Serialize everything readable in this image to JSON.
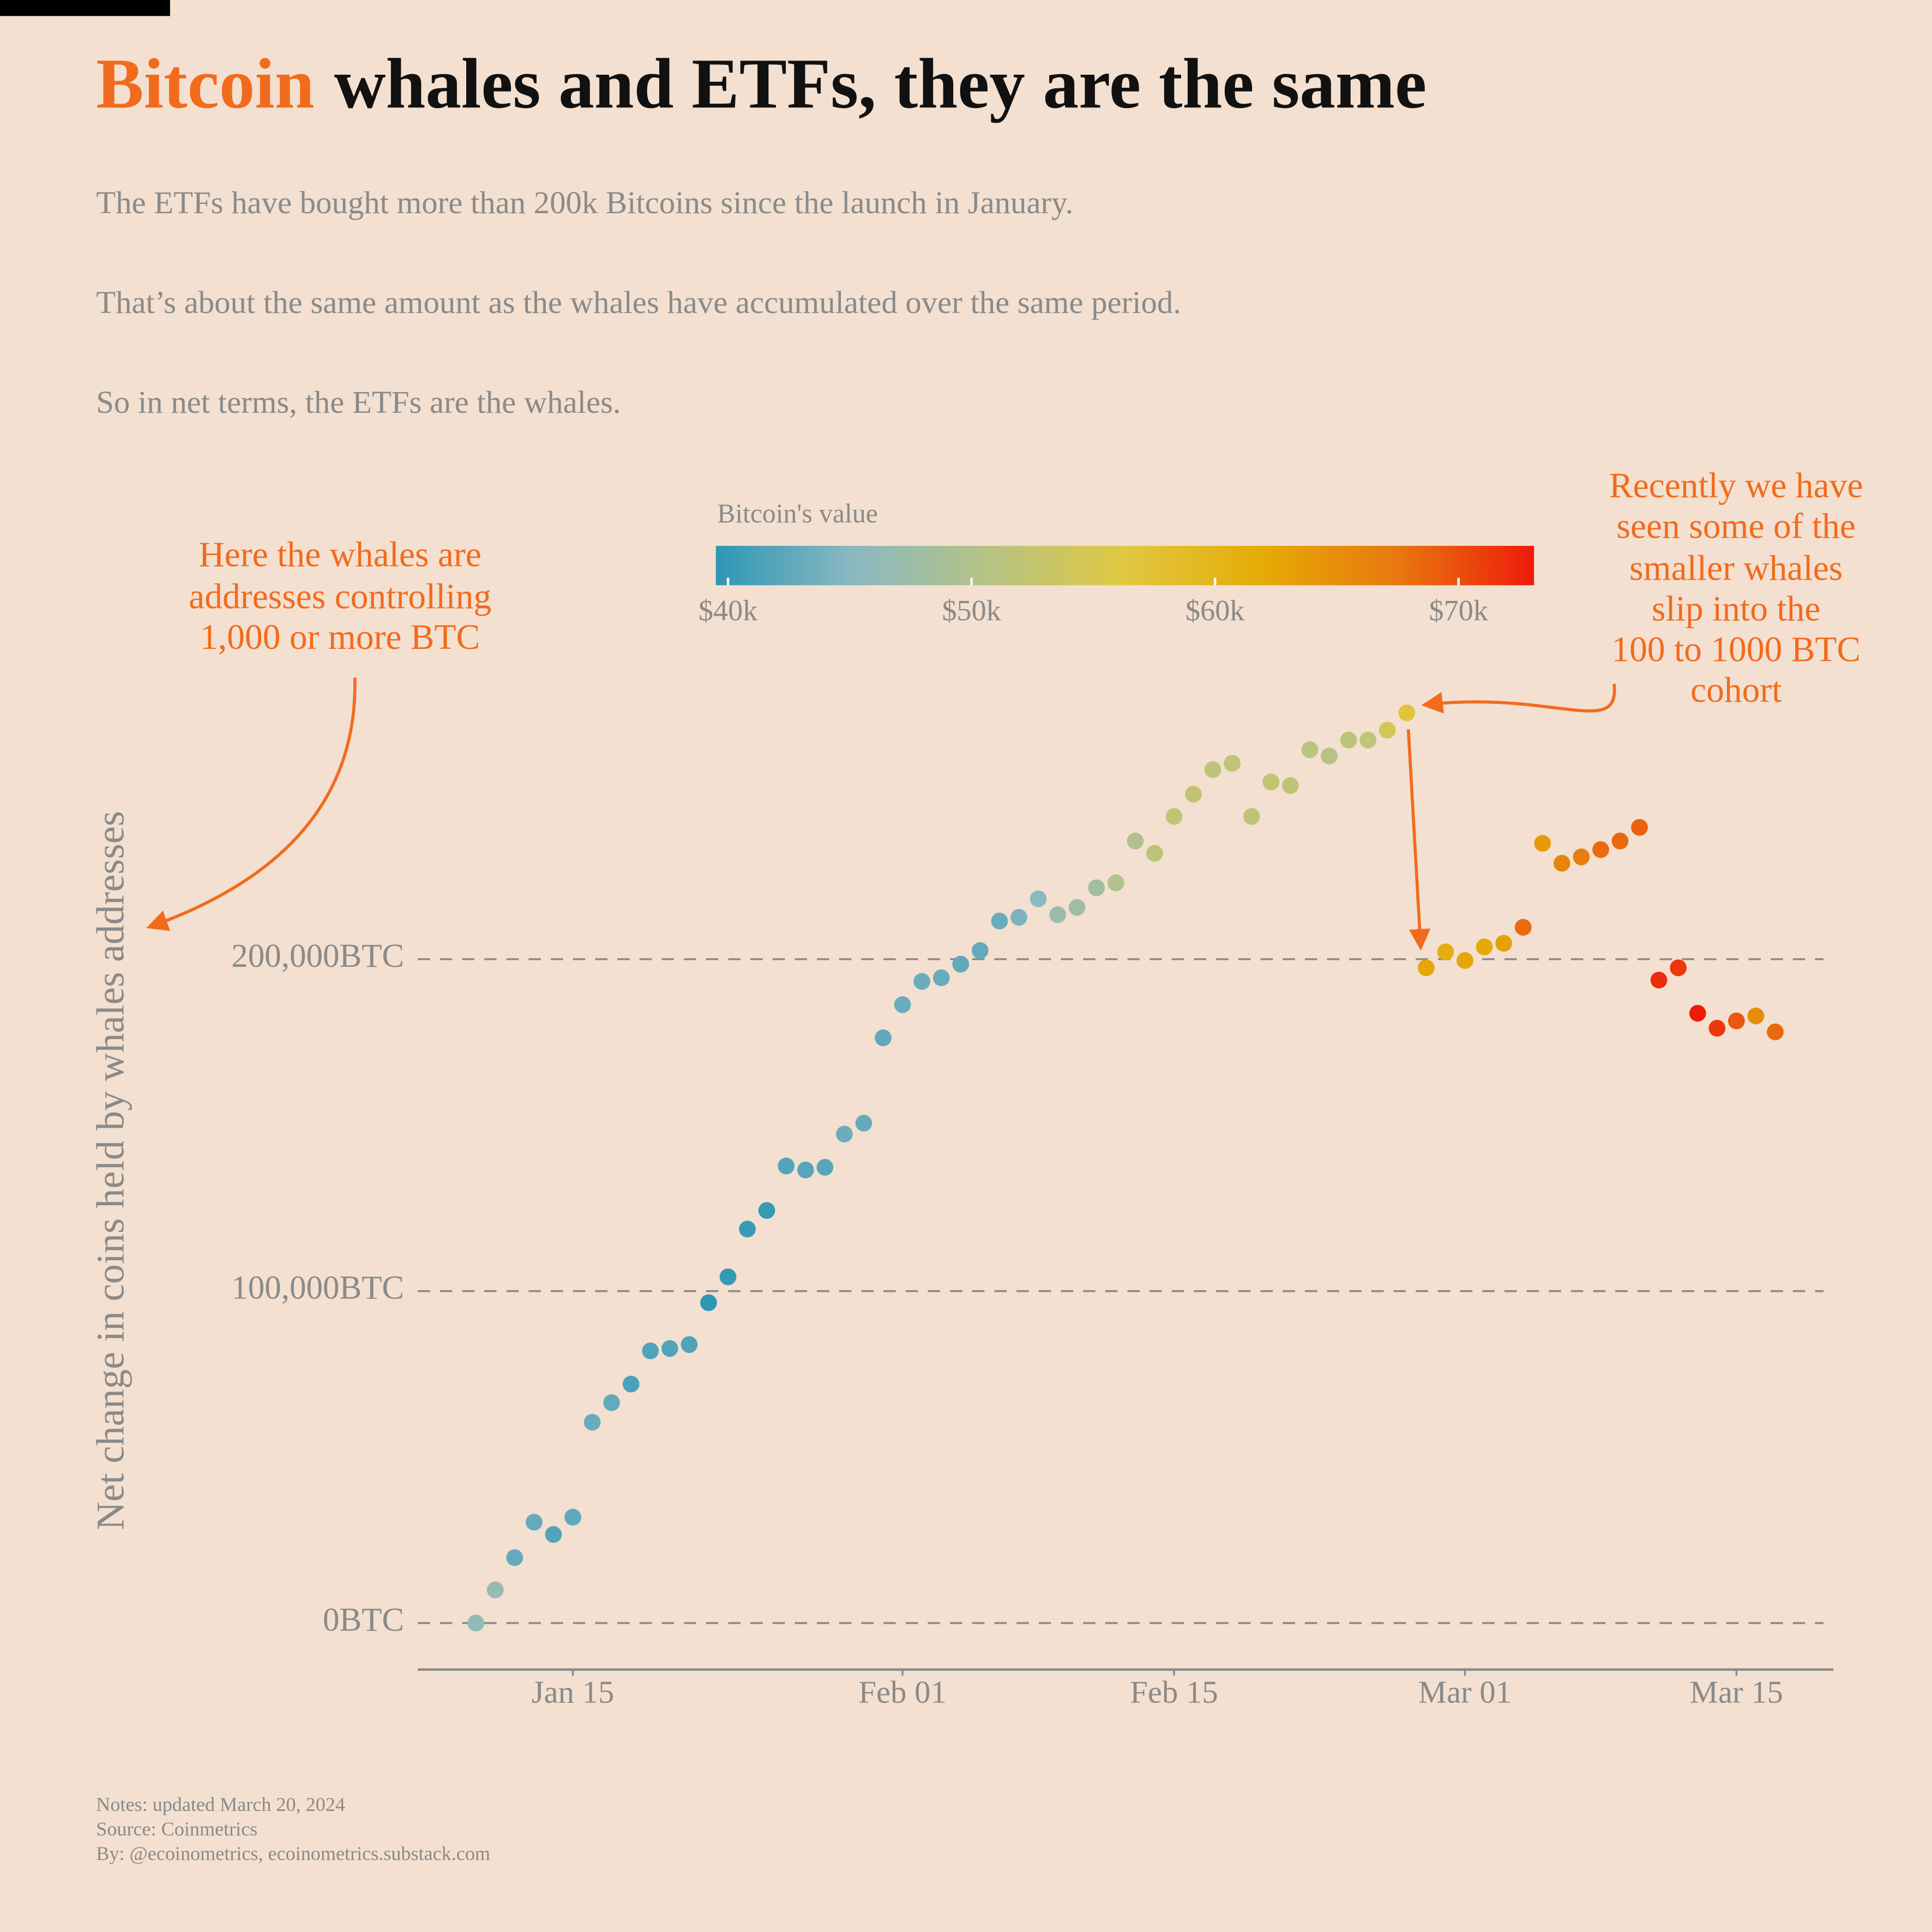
{
  "chart_data": {
    "type": "scatter",
    "title_parts": [
      "Bitcoin",
      "whales and ETFs, they are the same"
    ],
    "title_colors": [
      "#f26b1d",
      "#111111"
    ],
    "subtitle": [
      "The ETFs have bought more than 200k Bitcoins since the launch in January.",
      "That’s about the same amount as the whales have accumulated over the same period.",
      "So in net terms, the ETFs are the whales."
    ],
    "y_label": "Net change in coins held by whales addresses",
    "annotations": [
      [
        "Here the whales are",
        "addresses controlling",
        "1,000 or more BTC"
      ],
      [
        "Recently we have",
        "seen some of the",
        "smaller whales",
        "slip into the",
        "100 to 1000 BTC",
        "cohort"
      ]
    ],
    "notes": [
      "Notes: updated March 20, 2024",
      "Source: Coinmetrics",
      "By: @ecoinometrics, ecoinometrics.substack.com"
    ],
    "x": [
      "01-10",
      "01-11",
      "01-12",
      "01-13",
      "01-14",
      "01-15",
      "01-16",
      "01-17",
      "01-18",
      "01-19",
      "01-20",
      "01-21",
      "01-22",
      "01-23",
      "01-24",
      "01-25",
      "01-26",
      "01-27",
      "01-28",
      "01-29",
      "01-30",
      "01-31",
      "02-01",
      "02-02",
      "02-03",
      "02-04",
      "02-05",
      "02-06",
      "02-07",
      "02-08",
      "02-09",
      "02-10",
      "02-11",
      "02-12",
      "02-13",
      "02-14",
      "02-15",
      "02-16",
      "02-17",
      "02-18",
      "02-19",
      "02-20",
      "02-21",
      "02-22",
      "02-23",
      "02-24",
      "02-25",
      "02-26",
      "02-27",
      "02-28",
      "02-29",
      "03-01",
      "03-02",
      "03-03",
      "03-04",
      "03-05",
      "03-06",
      "03-07",
      "03-08",
      "03-09",
      "03-10",
      "03-11",
      "03-12",
      "03-13",
      "03-14",
      "03-15",
      "03-16",
      "03-17"
    ],
    "values": [
      0,
      10000,
      19700,
      30400,
      26700,
      31900,
      60500,
      66400,
      72000,
      82000,
      82700,
      83900,
      96500,
      104300,
      118700,
      124300,
      137700,
      136500,
      137300,
      147300,
      150600,
      176300,
      186300,
      193300,
      194400,
      198500,
      202600,
      211500,
      212600,
      218200,
      213400,
      215600,
      221500,
      223000,
      235600,
      231900,
      243000,
      249700,
      257100,
      259000,
      243000,
      253400,
      252300,
      263100,
      261200,
      266000,
      266000,
      269000,
      274200,
      197400,
      202200,
      199600,
      203700,
      204800,
      209600,
      234900,
      228900,
      230800,
      233000,
      235600,
      239700,
      193700,
      197400,
      183700,
      179200,
      181400,
      182900,
      178100
    ],
    "color_values": [
      46000,
      46600,
      42800,
      42800,
      41700,
      42500,
      43100,
      42700,
      41200,
      41600,
      41700,
      41600,
      39500,
      39800,
      40100,
      40000,
      41800,
      42100,
      42000,
      43300,
      42900,
      42600,
      43100,
      43200,
      43000,
      42600,
      42700,
      43100,
      44300,
      45300,
      47100,
      47800,
      48300,
      50000,
      49700,
      51800,
      52000,
      52100,
      51600,
      52100,
      51800,
      52300,
      51800,
      51300,
      50700,
      51600,
      51700,
      54500,
      57000,
      62500,
      61200,
      62400,
      62000,
      63100,
      68300,
      63800,
      66100,
      66900,
      68300,
      68500,
      68900,
      72100,
      71500,
      73100,
      71400,
      69500,
      65300,
      68400
    ],
    "xlim": [
      "01-07",
      "03-20"
    ],
    "xticks": [
      {
        "value": "01-15",
        "label": "Jan 15"
      },
      {
        "value": "02-01",
        "label": "Feb 01"
      },
      {
        "value": "02-15",
        "label": "Feb 15"
      },
      {
        "value": "03-01",
        "label": "Mar 01"
      },
      {
        "value": "03-15",
        "label": "Mar 15"
      }
    ],
    "ylim": [
      -14000,
      290000
    ],
    "yticks": [
      {
        "value": 0,
        "label": "0BTC"
      },
      {
        "value": 100000,
        "label": "100,000BTC"
      },
      {
        "value": 200000,
        "label": "200,000BTC"
      }
    ],
    "grid": true,
    "colorbar": {
      "label": "Bitcoin's value",
      "lim": [
        39500,
        73100
      ],
      "ticks": [
        {
          "value": 40000,
          "label": "$40k"
        },
        {
          "value": 50000,
          "label": "$50k"
        },
        {
          "value": 60000,
          "label": "$60k"
        },
        {
          "value": 70000,
          "label": "$70k"
        }
      ],
      "colormap": [
        "#2e97b3",
        "#8ab8c2",
        "#b6c384",
        "#e0c842",
        "#e5ab06",
        "#e8780f",
        "#ee1b0b"
      ]
    }
  }
}
